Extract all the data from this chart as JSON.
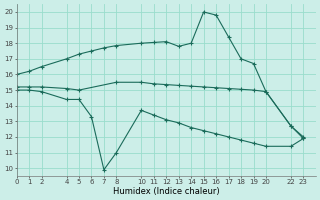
{
  "background_color": "#cceee8",
  "grid_color": "#99ddcc",
  "line_color": "#1a6b5a",
  "line1_x": [
    0,
    1,
    2,
    4,
    5,
    6,
    7,
    8,
    10,
    11,
    12,
    13,
    14,
    15,
    16,
    17,
    18,
    19,
    20,
    22,
    23
  ],
  "line1_y": [
    16.0,
    16.2,
    16.5,
    17.0,
    17.3,
    17.5,
    17.7,
    17.85,
    18.0,
    18.05,
    18.1,
    17.8,
    18.0,
    20.0,
    19.8,
    18.4,
    17.0,
    16.7,
    14.9,
    12.7,
    12.0
  ],
  "line2_x": [
    0,
    1,
    2,
    4,
    5,
    8,
    10,
    11,
    12,
    13,
    14,
    15,
    16,
    17,
    18,
    19,
    20,
    22,
    23
  ],
  "line2_y": [
    15.2,
    15.2,
    15.2,
    15.1,
    15.0,
    15.5,
    15.5,
    15.4,
    15.35,
    15.3,
    15.25,
    15.2,
    15.15,
    15.1,
    15.05,
    15.0,
    14.9,
    12.7,
    11.9
  ],
  "line3_x": [
    0,
    1,
    2,
    4,
    5,
    6,
    7,
    8,
    10,
    11,
    12,
    13,
    14,
    15,
    16,
    17,
    18,
    19,
    20,
    22,
    23
  ],
  "line3_y": [
    15.0,
    15.0,
    14.9,
    14.4,
    14.4,
    13.3,
    9.9,
    11.0,
    13.7,
    13.4,
    13.1,
    12.9,
    12.6,
    12.4,
    12.2,
    12.0,
    11.8,
    11.6,
    11.4,
    11.4,
    11.9
  ],
  "xlabel": "Humidex (Indice chaleur)",
  "xlim": [
    0,
    24
  ],
  "ylim": [
    9.5,
    20.5
  ],
  "xticks": [
    0,
    1,
    2,
    4,
    5,
    6,
    7,
    8,
    10,
    11,
    12,
    13,
    14,
    15,
    16,
    17,
    18,
    19,
    20,
    22,
    23
  ],
  "yticks": [
    10,
    11,
    12,
    13,
    14,
    15,
    16,
    17,
    18,
    19,
    20
  ],
  "xlabel_fontsize": 6,
  "tick_fontsize": 5
}
